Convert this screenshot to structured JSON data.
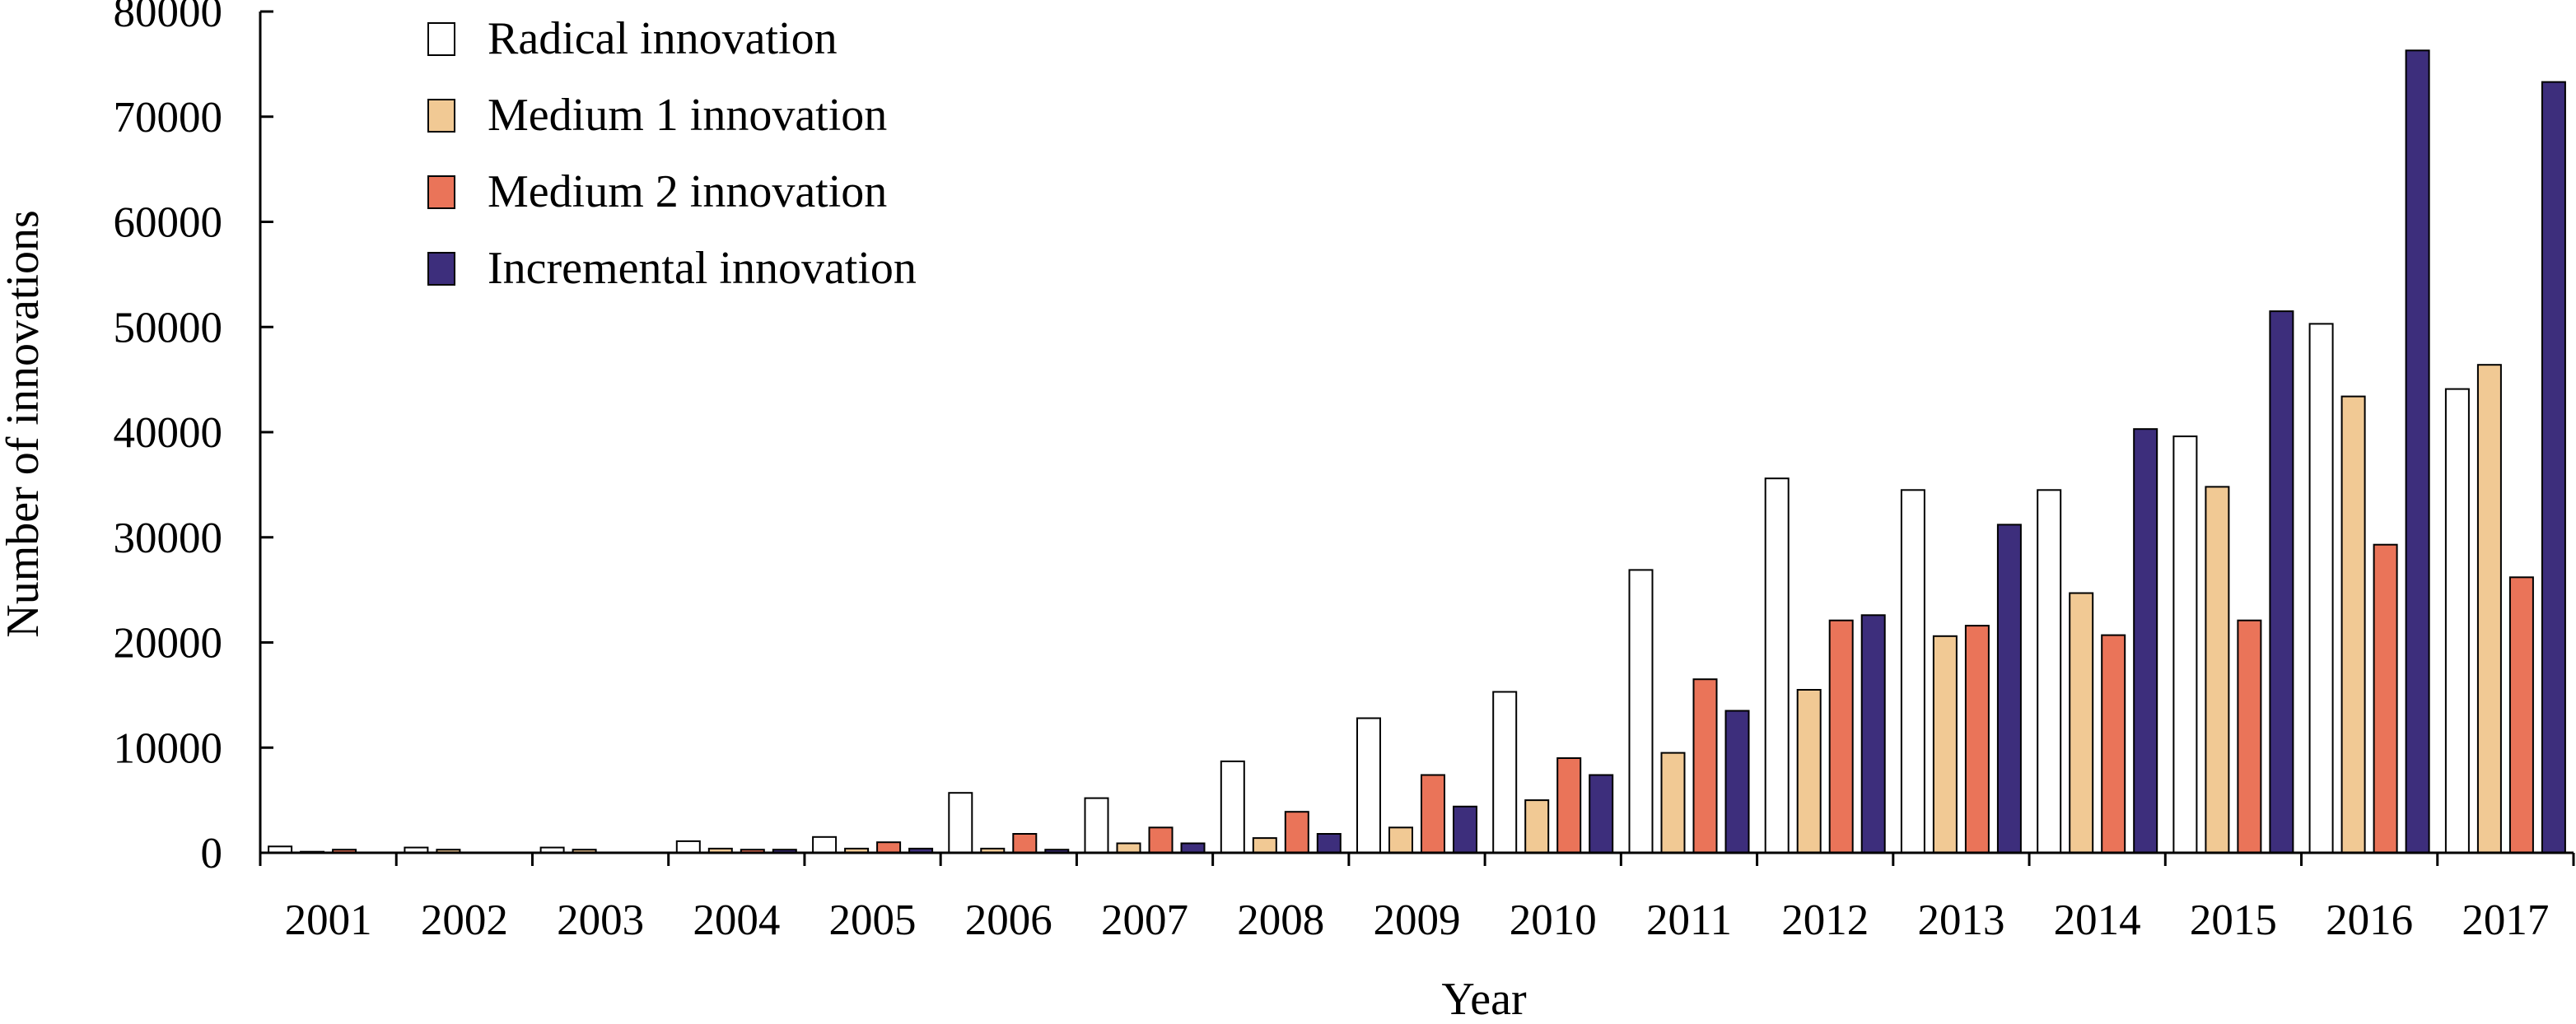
{
  "chart_data": {
    "type": "bar",
    "title": "",
    "xlabel": "Year",
    "ylabel": "Number of innovations",
    "ylim": [
      0,
      80000
    ],
    "yticks": [
      0,
      10000,
      20000,
      30000,
      40000,
      50000,
      60000,
      70000,
      80000
    ],
    "grid": false,
    "legend_position": "top-left",
    "categories": [
      "2001",
      "2002",
      "2003",
      "2004",
      "2005",
      "2006",
      "2007",
      "2008",
      "2009",
      "2010",
      "2011",
      "2012",
      "2013",
      "2014",
      "2015",
      "2016",
      "2017"
    ],
    "series": [
      {
        "name": "Radical innovation",
        "color": "#ffffff",
        "values": [
          600,
          500,
          500,
          1100,
          1500,
          5700,
          5200,
          8700,
          12800,
          15300,
          26900,
          35600,
          34500,
          34500,
          39600,
          50300,
          44100
        ]
      },
      {
        "name": "Medium 1 innovation",
        "color": "#f1c994",
        "values": [
          100,
          300,
          300,
          400,
          400,
          400,
          900,
          1400,
          2400,
          5000,
          9500,
          15500,
          20600,
          24700,
          34800,
          43400,
          46400
        ]
      },
      {
        "name": "Medium 2 innovation",
        "color": "#ea7459",
        "values": [
          300,
          0,
          0,
          300,
          1000,
          1800,
          2400,
          3900,
          7400,
          9000,
          16500,
          22100,
          21600,
          20700,
          22100,
          29300,
          26200
        ]
      },
      {
        "name": "Incremental innovation",
        "color": "#3d2e7c",
        "values": [
          0,
          0,
          0,
          300,
          400,
          300,
          900,
          1800,
          4400,
          7400,
          13500,
          22600,
          31200,
          40300,
          51500,
          76300,
          73300
        ]
      }
    ]
  }
}
